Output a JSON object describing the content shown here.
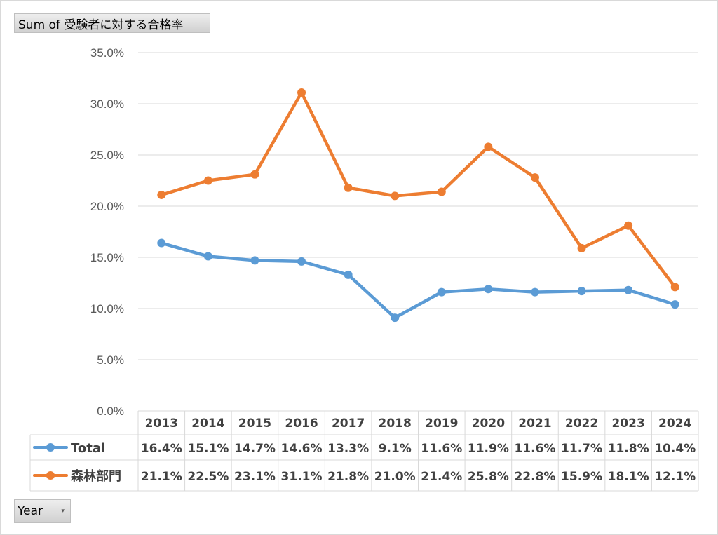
{
  "value_field_label": "Sum of 受験者に対する合格率",
  "row_field_label": "Year",
  "row_field_arrow": "▾",
  "chart_data": {
    "type": "line",
    "title": "",
    "xlabel": "",
    "ylabel": "",
    "categories": [
      "2013",
      "2014",
      "2015",
      "2016",
      "2017",
      "2018",
      "2019",
      "2020",
      "2021",
      "2022",
      "2023",
      "2024"
    ],
    "ylim": [
      0,
      35
    ],
    "yticks": [
      "0.0%",
      "5.0%",
      "10.0%",
      "15.0%",
      "20.0%",
      "25.0%",
      "30.0%",
      "35.0%"
    ],
    "grid": true,
    "data_table": true,
    "series": [
      {
        "name": "Total",
        "color": "#5b9bd5",
        "values": [
          16.4,
          15.1,
          14.7,
          14.6,
          13.3,
          9.1,
          11.6,
          11.9,
          11.6,
          11.7,
          11.8,
          10.4
        ],
        "labels": [
          "16.4%",
          "15.1%",
          "14.7%",
          "14.6%",
          "13.3%",
          "9.1%",
          "11.6%",
          "11.9%",
          "11.6%",
          "11.7%",
          "11.8%",
          "10.4%"
        ]
      },
      {
        "name": "森林部門",
        "color": "#ed7d31",
        "values": [
          21.1,
          22.5,
          23.1,
          31.1,
          21.8,
          21.0,
          21.4,
          25.8,
          22.8,
          15.9,
          18.1,
          12.1
        ],
        "labels": [
          "21.1%",
          "22.5%",
          "23.1%",
          "31.1%",
          "21.8%",
          "21.0%",
          "21.4%",
          "25.8%",
          "22.8%",
          "15.9%",
          "18.1%",
          "12.1%"
        ]
      }
    ]
  }
}
